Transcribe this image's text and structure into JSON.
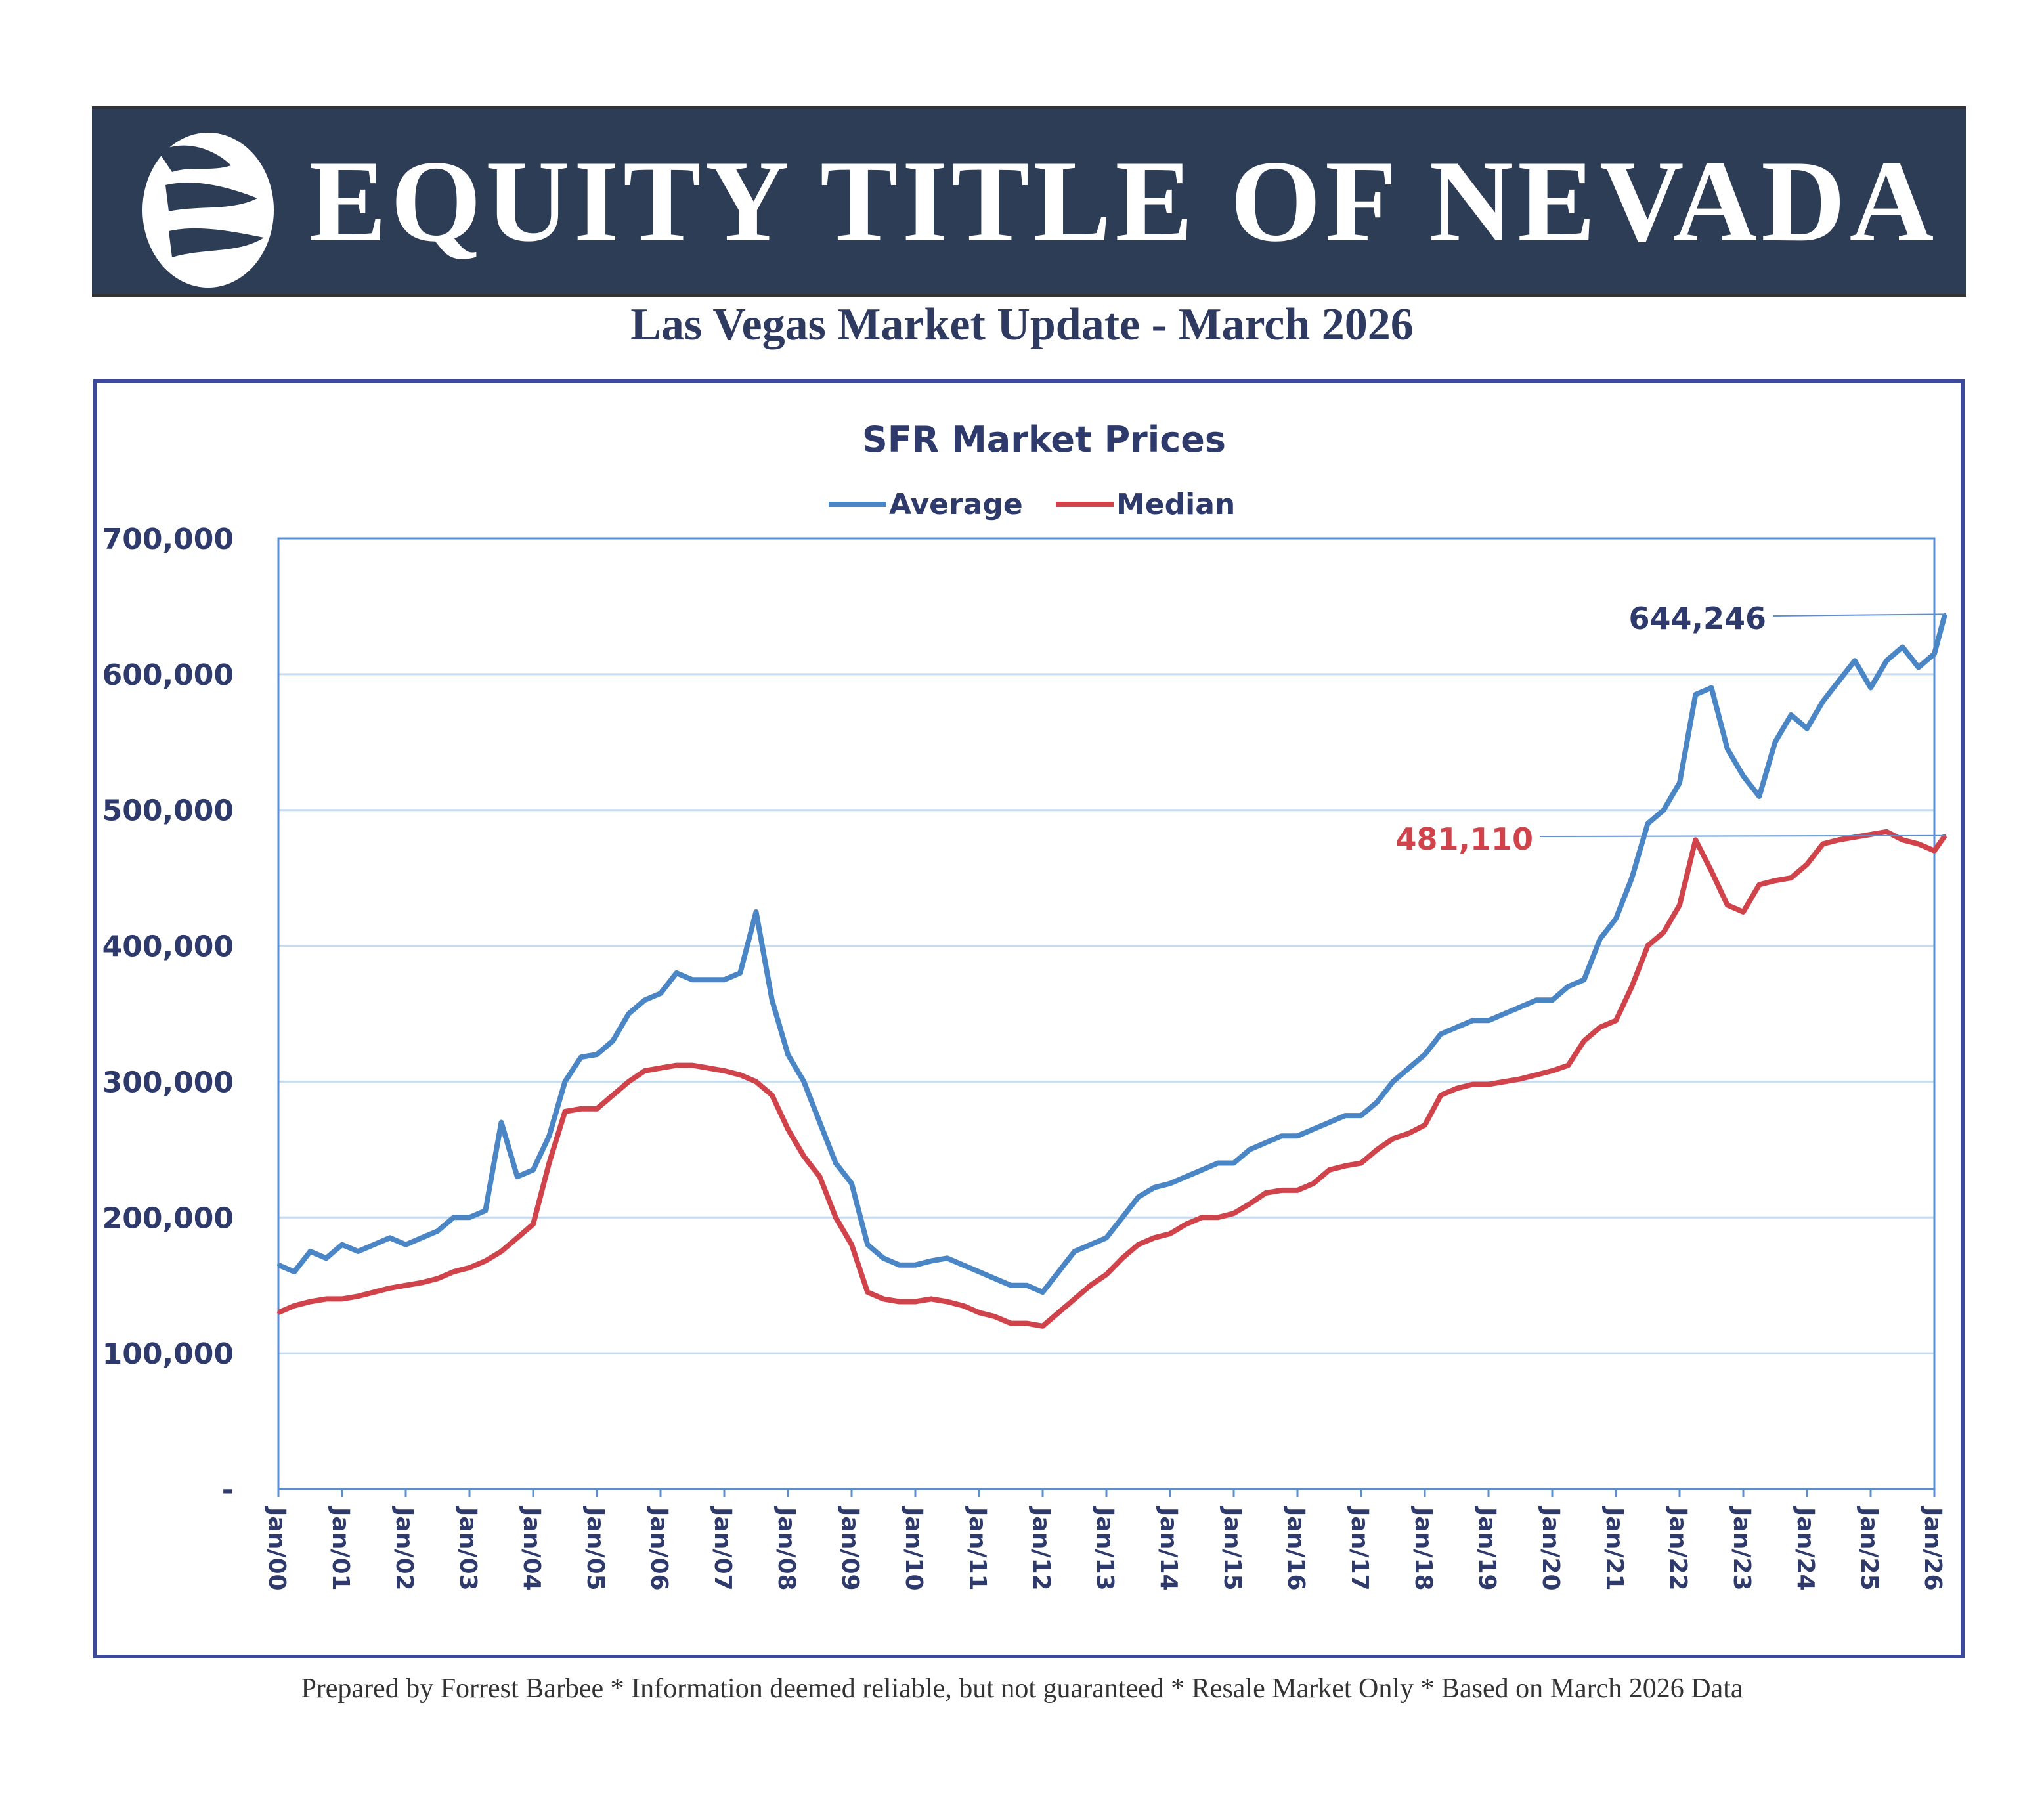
{
  "header": {
    "brand": "EQUITY TITLE OF NEVADA",
    "logo_icon": "sail-globe-logo",
    "subtitle": "Las Vegas Market Update - March 2026"
  },
  "footer": "Prepared by Forrest Barbee * Information deemed reliable, but not guaranteed * Resale Market Only * Based on March 2026 Data",
  "colors": {
    "banner": "#2e3d56",
    "frame": "#3d4a9c",
    "average": "#4a86c5",
    "median": "#d0434b",
    "text": "#2e3a6b",
    "grid": "#c5dcf0"
  },
  "chart_data": {
    "type": "line",
    "title": "SFR Market Prices",
    "xlabel": "",
    "ylabel": "",
    "ylim": [
      0,
      700000
    ],
    "grid": true,
    "legend": "top",
    "y_ticks": [
      0,
      100000,
      200000,
      300000,
      400000,
      500000,
      600000,
      700000
    ],
    "y_tick_labels": [
      "-",
      "100,000",
      "200,000",
      "300,000",
      "400,000",
      "500,000",
      "600,000",
      "700,000"
    ],
    "x_tick_labels": [
      "Jan/00",
      "Jan/01",
      "Jan/02",
      "Jan/03",
      "Jan/04",
      "Jan/05",
      "Jan/06",
      "Jan/07",
      "Jan/08",
      "Jan/09",
      "Jan/10",
      "Jan/11",
      "Jan/12",
      "Jan/13",
      "Jan/14",
      "Jan/15",
      "Jan/16",
      "Jan/17",
      "Jan/18",
      "Jan/19",
      "Jan/20",
      "Jan/21",
      "Jan/22",
      "Jan/23",
      "Jan/24",
      "Jan/25",
      "Jan/26"
    ],
    "x": [
      "2000-01",
      "2000-04",
      "2000-07",
      "2000-10",
      "2001-01",
      "2001-04",
      "2001-07",
      "2001-10",
      "2002-01",
      "2002-04",
      "2002-07",
      "2002-10",
      "2003-01",
      "2003-04",
      "2003-07",
      "2003-10",
      "2004-01",
      "2004-04",
      "2004-07",
      "2004-10",
      "2005-01",
      "2005-04",
      "2005-07",
      "2005-10",
      "2006-01",
      "2006-04",
      "2006-07",
      "2006-10",
      "2007-01",
      "2007-04",
      "2007-07",
      "2007-10",
      "2008-01",
      "2008-04",
      "2008-07",
      "2008-10",
      "2009-01",
      "2009-04",
      "2009-07",
      "2009-10",
      "2010-01",
      "2010-04",
      "2010-07",
      "2010-10",
      "2011-01",
      "2011-04",
      "2011-07",
      "2011-10",
      "2012-01",
      "2012-04",
      "2012-07",
      "2012-10",
      "2013-01",
      "2013-04",
      "2013-07",
      "2013-10",
      "2014-01",
      "2014-04",
      "2014-07",
      "2014-10",
      "2015-01",
      "2015-04",
      "2015-07",
      "2015-10",
      "2016-01",
      "2016-04",
      "2016-07",
      "2016-10",
      "2017-01",
      "2017-04",
      "2017-07",
      "2017-10",
      "2018-01",
      "2018-04",
      "2018-07",
      "2018-10",
      "2019-01",
      "2019-04",
      "2019-07",
      "2019-10",
      "2020-01",
      "2020-04",
      "2020-07",
      "2020-10",
      "2021-01",
      "2021-04",
      "2021-07",
      "2021-10",
      "2022-01",
      "2022-04",
      "2022-07",
      "2022-10",
      "2023-01",
      "2023-04",
      "2023-07",
      "2023-10",
      "2024-01",
      "2024-04",
      "2024-07",
      "2024-10",
      "2025-01",
      "2025-04",
      "2025-07",
      "2025-10",
      "2026-01",
      "2026-03"
    ],
    "series": [
      {
        "name": "Average",
        "color": "#4a86c5",
        "end_label": "644,246",
        "values": [
          165000,
          160000,
          175000,
          170000,
          180000,
          175000,
          180000,
          185000,
          180000,
          185000,
          190000,
          200000,
          200000,
          205000,
          270000,
          230000,
          235000,
          260000,
          300000,
          318000,
          320000,
          330000,
          350000,
          360000,
          365000,
          380000,
          375000,
          375000,
          375000,
          380000,
          425000,
          360000,
          320000,
          300000,
          270000,
          240000,
          225000,
          180000,
          170000,
          165000,
          165000,
          168000,
          170000,
          165000,
          160000,
          155000,
          150000,
          150000,
          145000,
          160000,
          175000,
          180000,
          185000,
          200000,
          215000,
          222000,
          225000,
          230000,
          235000,
          240000,
          240000,
          250000,
          255000,
          260000,
          260000,
          265000,
          270000,
          275000,
          275000,
          285000,
          300000,
          310000,
          320000,
          335000,
          340000,
          345000,
          345000,
          350000,
          355000,
          360000,
          360000,
          370000,
          375000,
          405000,
          420000,
          450000,
          490000,
          500000,
          520000,
          585000,
          590000,
          545000,
          525000,
          510000,
          550000,
          570000,
          560000,
          580000,
          595000,
          610000,
          590000,
          610000,
          620000,
          605000,
          615000,
          644246
        ]
      },
      {
        "name": "Median",
        "color": "#d0434b",
        "end_label": "481,110",
        "values": [
          130000,
          135000,
          138000,
          140000,
          140000,
          142000,
          145000,
          148000,
          150000,
          152000,
          155000,
          160000,
          163000,
          168000,
          175000,
          185000,
          195000,
          240000,
          278000,
          280000,
          280000,
          290000,
          300000,
          308000,
          310000,
          312000,
          312000,
          310000,
          308000,
          305000,
          300000,
          290000,
          265000,
          245000,
          230000,
          200000,
          180000,
          145000,
          140000,
          138000,
          138000,
          140000,
          138000,
          135000,
          130000,
          127000,
          122000,
          122000,
          120000,
          130000,
          140000,
          150000,
          158000,
          170000,
          180000,
          185000,
          188000,
          195000,
          200000,
          200000,
          203000,
          210000,
          218000,
          220000,
          220000,
          225000,
          235000,
          238000,
          240000,
          250000,
          258000,
          262000,
          268000,
          290000,
          295000,
          298000,
          298000,
          300000,
          302000,
          305000,
          308000,
          312000,
          330000,
          340000,
          345000,
          370000,
          400000,
          410000,
          430000,
          478000,
          455000,
          430000,
          425000,
          445000,
          448000,
          450000,
          460000,
          475000,
          478000,
          480000,
          482000,
          484000,
          478000,
          475000,
          470000,
          481110
        ]
      }
    ]
  }
}
